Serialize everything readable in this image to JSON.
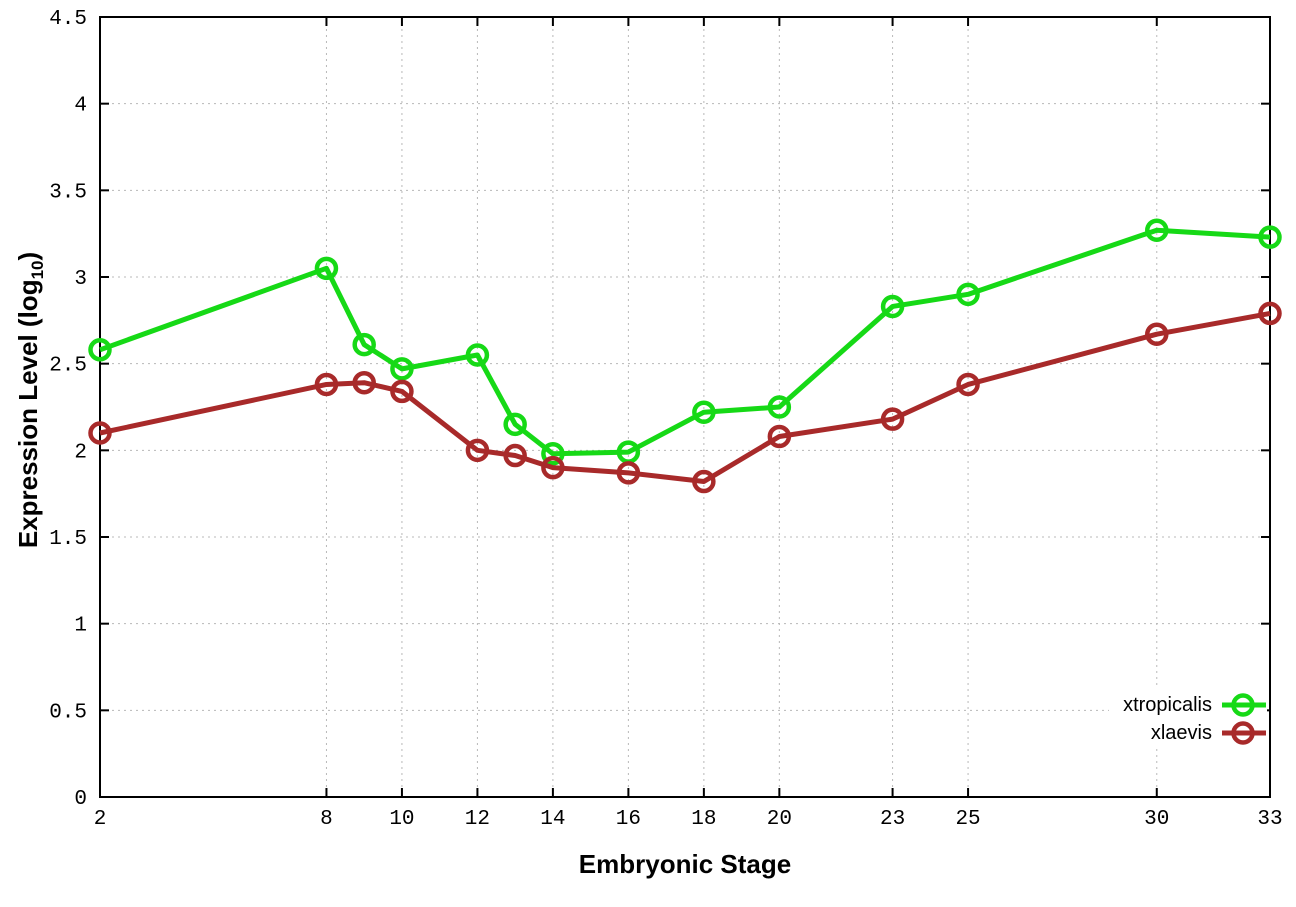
{
  "figure": {
    "background": "#ffffff",
    "title": ""
  },
  "axis_titles": {
    "x": "Embryonic Stage",
    "y_prefix": "Expression Level (log",
    "y_subscript": "10",
    "y_suffix": ")"
  },
  "legend": {
    "position": "bottom-right",
    "items": [
      {
        "label": "xtropicalis",
        "color": "#16d916"
      },
      {
        "label": "xlaevis",
        "color": "#a82a2a"
      }
    ]
  },
  "chart_data": {
    "type": "line",
    "title": "",
    "xlabel": "Embryonic Stage",
    "ylabel": "Expression Level (log10)",
    "xlim": [
      2,
      33
    ],
    "ylim": [
      0,
      4.5
    ],
    "grid": true,
    "legend_position": "bottom-right",
    "x_ticks": [
      2,
      8,
      10,
      12,
      14,
      16,
      18,
      20,
      23,
      25,
      30,
      33
    ],
    "x_tick_labels": [
      "2",
      "8",
      "10",
      "12",
      "14",
      "16",
      "18",
      "20",
      "23",
      "25",
      "30",
      "33"
    ],
    "y_ticks": [
      0,
      0.5,
      1,
      1.5,
      2,
      2.5,
      3,
      3.5,
      4,
      4.5
    ],
    "y_tick_labels": [
      "0",
      "0.5",
      "1",
      "1.5",
      "2",
      "2.5",
      "3",
      "3.5",
      "4",
      "4.5"
    ],
    "marker": "open-circle",
    "series": [
      {
        "name": "xtropicalis",
        "color": "#16d916",
        "x": [
          2,
          8,
          9,
          10,
          12,
          13,
          14,
          16,
          18,
          20,
          23,
          25,
          30,
          33
        ],
        "y": [
          2.58,
          3.05,
          2.61,
          2.47,
          2.55,
          2.15,
          1.98,
          1.99,
          2.22,
          2.25,
          2.83,
          2.9,
          3.27,
          3.23
        ]
      },
      {
        "name": "xlaevis",
        "color": "#a82a2a",
        "x": [
          2,
          8,
          9,
          10,
          12,
          13,
          14,
          16,
          18,
          20,
          23,
          25,
          30,
          33
        ],
        "y": [
          2.1,
          2.38,
          2.39,
          2.34,
          2.0,
          1.97,
          1.9,
          1.87,
          1.82,
          2.08,
          2.18,
          2.38,
          2.67,
          2.79
        ]
      }
    ]
  }
}
